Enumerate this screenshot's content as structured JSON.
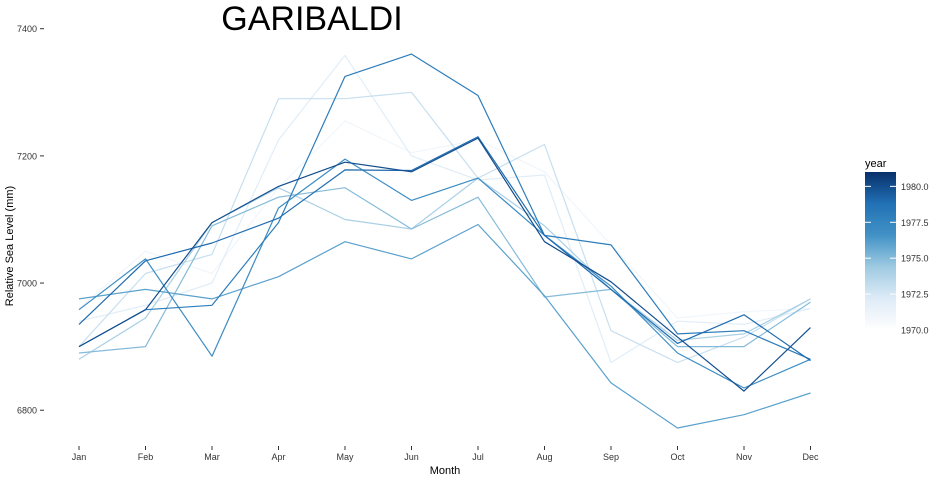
{
  "chart_data": {
    "type": "line",
    "title": "GARIBALDI",
    "xlabel": "Month",
    "ylabel": "Relative Sea Level (mm)",
    "categories": [
      "Jan",
      "Feb",
      "Mar",
      "Apr",
      "May",
      "Jun",
      "Jul",
      "Aug",
      "Sep",
      "Oct",
      "Nov",
      "Dec"
    ],
    "ylim": [
      6750,
      7420
    ],
    "yticks": [
      6800,
      7000,
      7200,
      7400
    ],
    "yticks_labels": [
      "6800",
      "7000",
      "7200",
      "7400"
    ],
    "grid": false,
    "legend": {
      "title": "year",
      "position": "right",
      "type": "colorbar",
      "range": [
        1970,
        1981
      ],
      "ticks": [
        1970.0,
        1972.5,
        1975.0,
        1977.5,
        1980.0
      ],
      "tick_labels": [
        "1970.0",
        "1972.5",
        "1975.0",
        "1977.5",
        "1980.0"
      ],
      "colors": [
        "#ffffff",
        "#deebf7",
        "#9ecae1",
        "#4292c6",
        "#2171b5",
        "#08306b"
      ]
    },
    "series": [
      {
        "year": 1970,
        "values": [
          6990,
          7055,
          7010,
          7220,
          7378,
          7205,
          7235,
          7175,
          7075,
          6965,
          6993,
          6930
        ]
      },
      {
        "year": 1971,
        "values": [
          6960,
          7050,
          7015,
          7150,
          7255,
          7205,
          7225,
          7175,
          7060,
          6945,
          6955,
          6960
        ]
      },
      {
        "year": 1972,
        "values": [
          6940,
          6965,
          7000,
          7225,
          7358,
          7200,
          7162,
          7170,
          6875,
          6940,
          6935,
          6960
        ]
      },
      {
        "year": 1973,
        "values": [
          6900,
          7015,
          7045,
          7290,
          7290,
          7300,
          7165,
          7218,
          6925,
          6875,
          6915,
          6975
        ]
      },
      {
        "year": 1974,
        "values": [
          6880,
          6945,
          7095,
          7150,
          7100,
          7085,
          7165,
          7090,
          6990,
          6910,
          6920,
          6975
        ]
      },
      {
        "year": 1975,
        "values": [
          6890,
          6900,
          7090,
          7135,
          7150,
          7085,
          7135,
          6978,
          6990,
          6900,
          6900,
          6970
        ]
      },
      {
        "year": 1976,
        "values": [
          6975,
          6990,
          6975,
          7010,
          7065,
          7038,
          7092,
          6980,
          6843,
          6772,
          6793,
          6827
        ]
      },
      {
        "year": 1977,
        "values": [
          6958,
          7038,
          6885,
          7118,
          7195,
          7130,
          7165,
          7075,
          6995,
          6890,
          6835,
          6880
        ]
      },
      {
        "year": 1978,
        "values": [
          6900,
          6958,
          6965,
          7095,
          7325,
          7360,
          7295,
          7075,
          7060,
          6920,
          6925,
          6880
        ]
      },
      {
        "year": 1979,
        "values": [
          6935,
          7035,
          7063,
          7102,
          7178,
          7177,
          7230,
          7075,
          6990,
          6905,
          6950,
          6878
        ]
      },
      {
        "year": 1980,
        "values": [
          6900,
          6958,
          7095,
          7152,
          7190,
          7175,
          7228,
          7065,
          7002,
          6915,
          6830,
          6930
        ]
      }
    ]
  }
}
